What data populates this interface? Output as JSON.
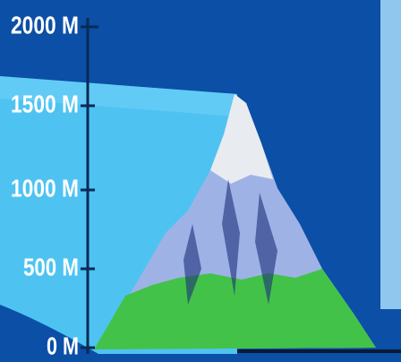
{
  "axis": {
    "labels": [
      "2000 M",
      "1500 M",
      "1000 M",
      "500 M",
      "0 M"
    ]
  }
}
